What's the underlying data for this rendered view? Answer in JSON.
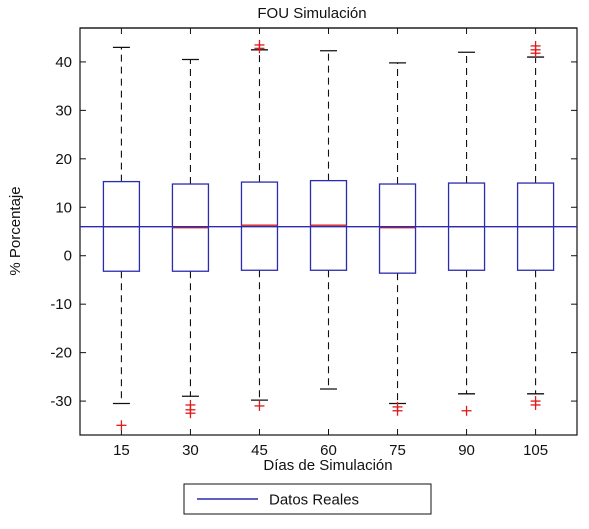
{
  "chart_data": {
    "type": "box",
    "title": "FOU Simulación",
    "xlabel": "Días de Simulación",
    "ylabel": "% Porcentaje",
    "categories": [
      "15",
      "30",
      "45",
      "60",
      "75",
      "90",
      "105"
    ],
    "ylim": [
      -37,
      47
    ],
    "yticks": [
      -30,
      -20,
      -10,
      0,
      10,
      20,
      30,
      40
    ],
    "boxes": [
      {
        "category": "15",
        "whisker_low": -30.5,
        "q1": -3.2,
        "median": 6.0,
        "q3": 15.3,
        "whisker_high": 43.0,
        "outliers": [
          -35.0
        ]
      },
      {
        "category": "30",
        "whisker_low": -29.0,
        "q1": -3.2,
        "median": 5.8,
        "q3": 14.8,
        "whisker_high": 40.5,
        "outliers": [
          -30.8,
          -31.8,
          -32.5
        ]
      },
      {
        "category": "45",
        "whisker_low": -29.8,
        "q1": -3.0,
        "median": 6.3,
        "q3": 15.2,
        "whisker_high": 42.5,
        "outliers": [
          -31.0,
          42.8,
          43.5
        ]
      },
      {
        "category": "60",
        "whisker_low": -27.5,
        "q1": -3.0,
        "median": 6.3,
        "q3": 15.5,
        "whisker_high": 42.3,
        "outliers": []
      },
      {
        "category": "75",
        "whisker_low": -30.5,
        "q1": -3.6,
        "median": 5.8,
        "q3": 14.8,
        "whisker_high": 39.8,
        "outliers": [
          -31.2,
          -32.0
        ]
      },
      {
        "category": "90",
        "whisker_low": -28.5,
        "q1": -3.0,
        "median": 6.0,
        "q3": 15.0,
        "whisker_high": 42.0,
        "outliers": [
          -32.0
        ]
      },
      {
        "category": "105",
        "whisker_low": -28.5,
        "q1": -3.0,
        "median": 6.0,
        "q3": 15.0,
        "whisker_high": 41.0,
        "outliers": [
          -30.0,
          -30.8,
          41.8,
          42.5,
          43.3
        ]
      }
    ],
    "reference_line": {
      "name": "Datos Reales",
      "value": 6.0
    },
    "legend": {
      "placement": "bottom",
      "entries": [
        "Datos Reales"
      ]
    },
    "grid": false,
    "colors": {
      "box": "#2b2bb0",
      "median": "#d62020",
      "whisker": "#111111",
      "outlier": "#e01a1a",
      "reference": "#2b2bb0"
    }
  }
}
